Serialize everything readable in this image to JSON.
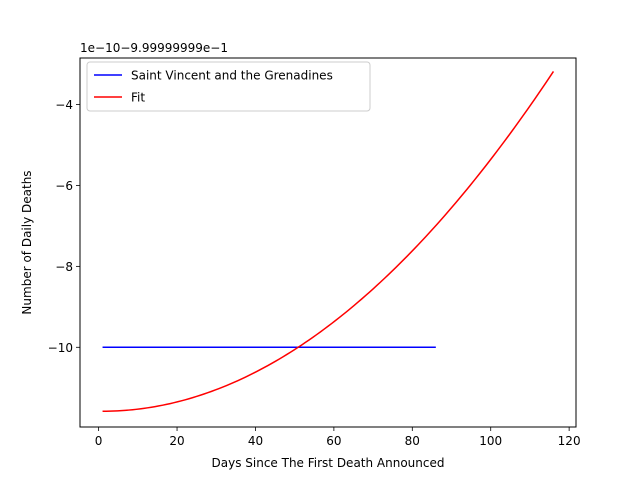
{
  "chart_data": {
    "type": "line",
    "title": "",
    "xlabel": "Days Since The First Death Announced",
    "ylabel": "Number of Daily Deaths",
    "offset_text": "1e−10−9.99999999e−1",
    "xlim": [
      -4.75,
      121.75
    ],
    "ylim": [
      -11.97,
      -2.85
    ],
    "xticks": [
      0,
      20,
      40,
      60,
      80,
      100,
      120
    ],
    "xtick_labels": [
      "0",
      "20",
      "40",
      "60",
      "80",
      "100",
      "120"
    ],
    "yticks": [
      -10,
      -8,
      -6,
      -4
    ],
    "ytick_labels": [
      "−10",
      "−8",
      "−6",
      "−4"
    ],
    "grid": false,
    "legend_position": "upper-left",
    "series": [
      {
        "name": "Saint Vincent and the Grenadines",
        "color": "#0000ff",
        "kind": "flat",
        "x": [
          1,
          86
        ],
        "y": [
          -10,
          -10
        ]
      },
      {
        "name": "Fit",
        "color": "#ff0000",
        "kind": "quadratic",
        "x_range": [
          1,
          116
        ],
        "vertex_x": 1,
        "vertex_y": -11.58,
        "coefficient": 0.000635
      }
    ]
  }
}
